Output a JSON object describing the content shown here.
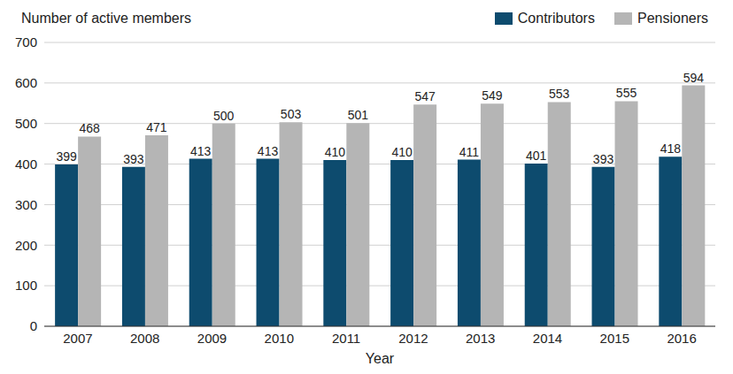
{
  "chart_data": {
    "type": "bar",
    "y_label": "Number of active members",
    "x_label": "Year",
    "categories": [
      "2007",
      "2008",
      "2009",
      "2010",
      "2011",
      "2012",
      "2013",
      "2014",
      "2015",
      "2016"
    ],
    "series": [
      {
        "name": "Contributors",
        "color": "#0d4b6e",
        "values": [
          399,
          393,
          413,
          413,
          410,
          410,
          411,
          401,
          393,
          418
        ]
      },
      {
        "name": "Pensioners",
        "color": "#b5b5b5",
        "values": [
          468,
          471,
          500,
          503,
          501,
          547,
          549,
          553,
          555,
          594
        ]
      }
    ],
    "ylim": [
      0,
      700
    ],
    "yticks": [
      0,
      100,
      200,
      300,
      400,
      500,
      600,
      700
    ],
    "grid": true,
    "legend": "top right",
    "data_labels": true
  }
}
